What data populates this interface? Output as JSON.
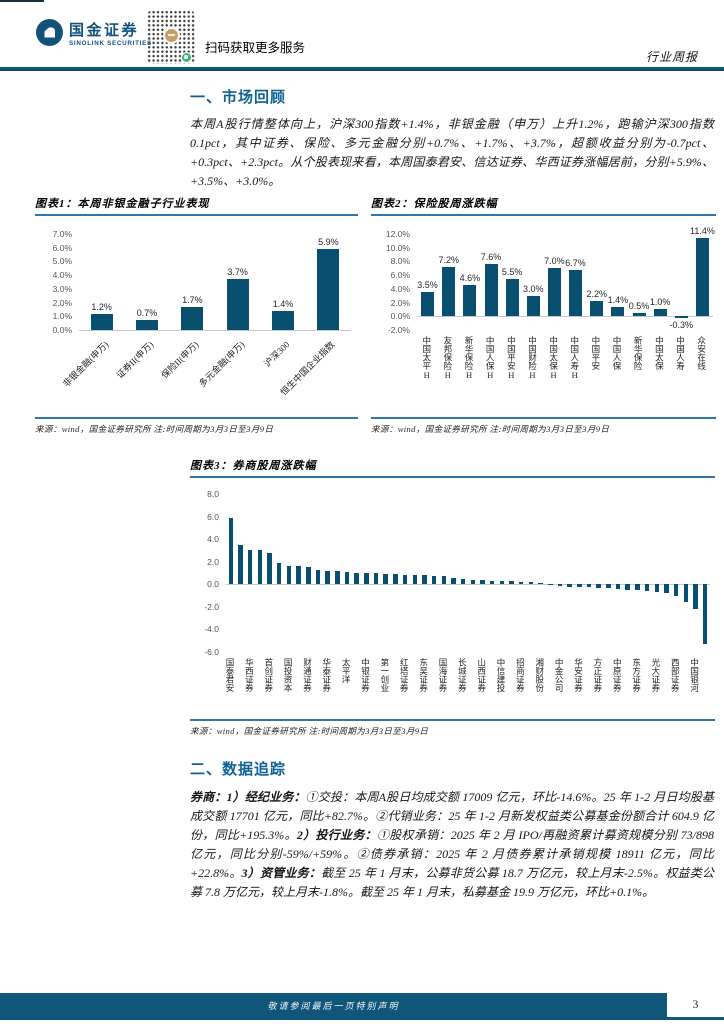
{
  "brand": {
    "name_cn": "国金证券",
    "name_en": "SINOLINK SECURITIES"
  },
  "header": {
    "scan_text": "扫码获取更多服务",
    "report_type": "行业周报"
  },
  "sections": {
    "s1_title": "一、市场回顾",
    "s1_para": "本周A股行情整体向上，沪深300指数+1.4%，非银金融（申万）上升1.2%，跑输沪深300指数 0.1pct，其中证券、保险、多元金融分别+0.7%、+1.7%、+3.7%，超额收益分别为-0.7pct、+0.3pct、+2.3pct。从个股表现来看，本周国泰君安、信达证券、华西证券涨幅居前，分别+5.9%、+3.5%、+3.0%。",
    "s2_title": "二、数据追踪",
    "s2_segments": [
      {
        "t": "券商：1）经纪业务：",
        "b": true
      },
      {
        "t": "①交投：本周A股日均成交额 17009 亿元，环比-14.6%。25 年 1-2 月日均股基成交额 17701 亿元，同比+82.7%。②代销业务：25 年 1-2 月新发权益类公募基金份额合计 604.9 亿份，同比+195.3%。",
        "b": false
      },
      {
        "t": "2）投行业务：",
        "b": true
      },
      {
        "t": "①股权承销：2025 年 2 月 IPO/再融资累计募资规模分别 73/898 亿元，同比分别-59%/+59%。②债券承销：2025 年 2 月债券累计承销规模 18911 亿元，同比+22.8%。",
        "b": false
      },
      {
        "t": "3）资管业务：",
        "b": true
      },
      {
        "t": "截至 25 年 1 月末，公募非货公募 18.7 万亿元，较上月末-2.5%。权益类公募 7.8 万亿元，较上月末-1.8%。截至 25 年 1 月末，私募基金 19.9 万亿元，环比+0.1%。",
        "b": false
      }
    ]
  },
  "figures": {
    "fig1": {
      "caption": "图表1：本周非银金融子行业表现",
      "source": "来源：wind，国金证券研究所  注:时间周期为3月3日至3月9日"
    },
    "fig2": {
      "caption": "图表2：保险股周涨跌幅",
      "source": "来源：wind，国金证券研究所  注:时间周期为3月3日至3月9日"
    },
    "fig3": {
      "caption": "图表3：券商股周涨跌幅",
      "source": "来源：wind，国金证券研究所  注:时间周期为3月3日至3月9日"
    }
  },
  "chart_data": [
    {
      "id": "fig1",
      "type": "bar",
      "title": "本周非银金融子行业表现",
      "categories": [
        "非银金融(申万)",
        "证券II(申万)",
        "保险II(申万)",
        "多元金融(申万)",
        "沪深300",
        "恒生中国企业指数"
      ],
      "values": [
        1.2,
        0.7,
        1.7,
        3.7,
        1.4,
        5.9
      ],
      "value_labels": [
        "1.2%",
        "0.7%",
        "1.7%",
        "3.7%",
        "1.4%",
        "5.9%"
      ],
      "unit": "%",
      "ylim": [
        0,
        7
      ],
      "ytick_step": 1,
      "grid": false,
      "legend": null
    },
    {
      "id": "fig2",
      "type": "bar",
      "title": "保险股周涨跌幅",
      "categories": [
        "中国太平H",
        "友邦保险H",
        "新华保险H",
        "中国人保H",
        "中国平安H",
        "中国财险H",
        "中国太保H",
        "中国人寿H",
        "中国平安",
        "中国人保",
        "新华保险",
        "中国太保",
        "中国人寿",
        "众安在线"
      ],
      "values": [
        3.5,
        7.2,
        4.6,
        7.6,
        5.5,
        3.0,
        7.0,
        6.7,
        2.2,
        1.4,
        0.5,
        1.0,
        -0.3,
        11.4
      ],
      "value_labels": [
        "3.5%",
        "7.2%",
        "4.6%",
        "7.6%",
        "5.5%",
        "3.0%",
        "7.0%",
        "6.7%",
        "2.2%",
        "1.4%",
        "0.5%",
        "1.0%",
        "-0.3%",
        "11.4%"
      ],
      "unit": "%",
      "ylim": [
        -2,
        12
      ],
      "ytick_step": 2,
      "grid": false,
      "legend": null
    },
    {
      "id": "fig3",
      "type": "bar",
      "title": "券商股周涨跌幅",
      "categories": [
        "国泰君安",
        "华西证券",
        "首创证券",
        "国投资本",
        "财通证券",
        "华泰证券",
        "太平洋",
        "中银证券",
        "第一创业",
        "红塔证券",
        "东吴证券",
        "国海证券",
        "长城证券",
        "山西证券",
        "中信建投",
        "招商证券",
        "湘财股份",
        "中金公司",
        "华安证券",
        "方正证券",
        "中原证券",
        "东方证券",
        "光大证券",
        "西部证券",
        "中国银河"
      ],
      "label_every": 2,
      "values": [
        5.9,
        3.5,
        3.0,
        3.0,
        2.8,
        1.9,
        1.6,
        1.6,
        1.5,
        1.3,
        1.2,
        1.2,
        1.1,
        1.0,
        1.0,
        1.0,
        0.9,
        0.9,
        0.8,
        0.8,
        0.8,
        0.7,
        0.7,
        0.6,
        0.5,
        0.4,
        0.4,
        0.3,
        0.3,
        0.3,
        0.2,
        0.2,
        0.1,
        -0.1,
        -0.15,
        -0.2,
        -0.2,
        -0.25,
        -0.3,
        -0.35,
        -0.4,
        -0.5,
        -0.55,
        -0.6,
        -0.7,
        -0.8,
        -1.0,
        -1.6,
        -2.2,
        -5.3
      ],
      "unit": "",
      "ylim": [
        -6,
        8
      ],
      "ytick_step": 2,
      "grid": false,
      "legend": null
    }
  ],
  "footer": {
    "disclaimer": "敬请参阅最后一页特别声明",
    "page_number": "3"
  },
  "colors": {
    "bar": "#084f70",
    "heading": "#0f6292",
    "rule_blue": "#2f76ad",
    "band_blue": "#0f567a",
    "logo_blue": "#11527b",
    "qr_badge_gold": "#c59f66",
    "qr_green": "#3db56f"
  }
}
